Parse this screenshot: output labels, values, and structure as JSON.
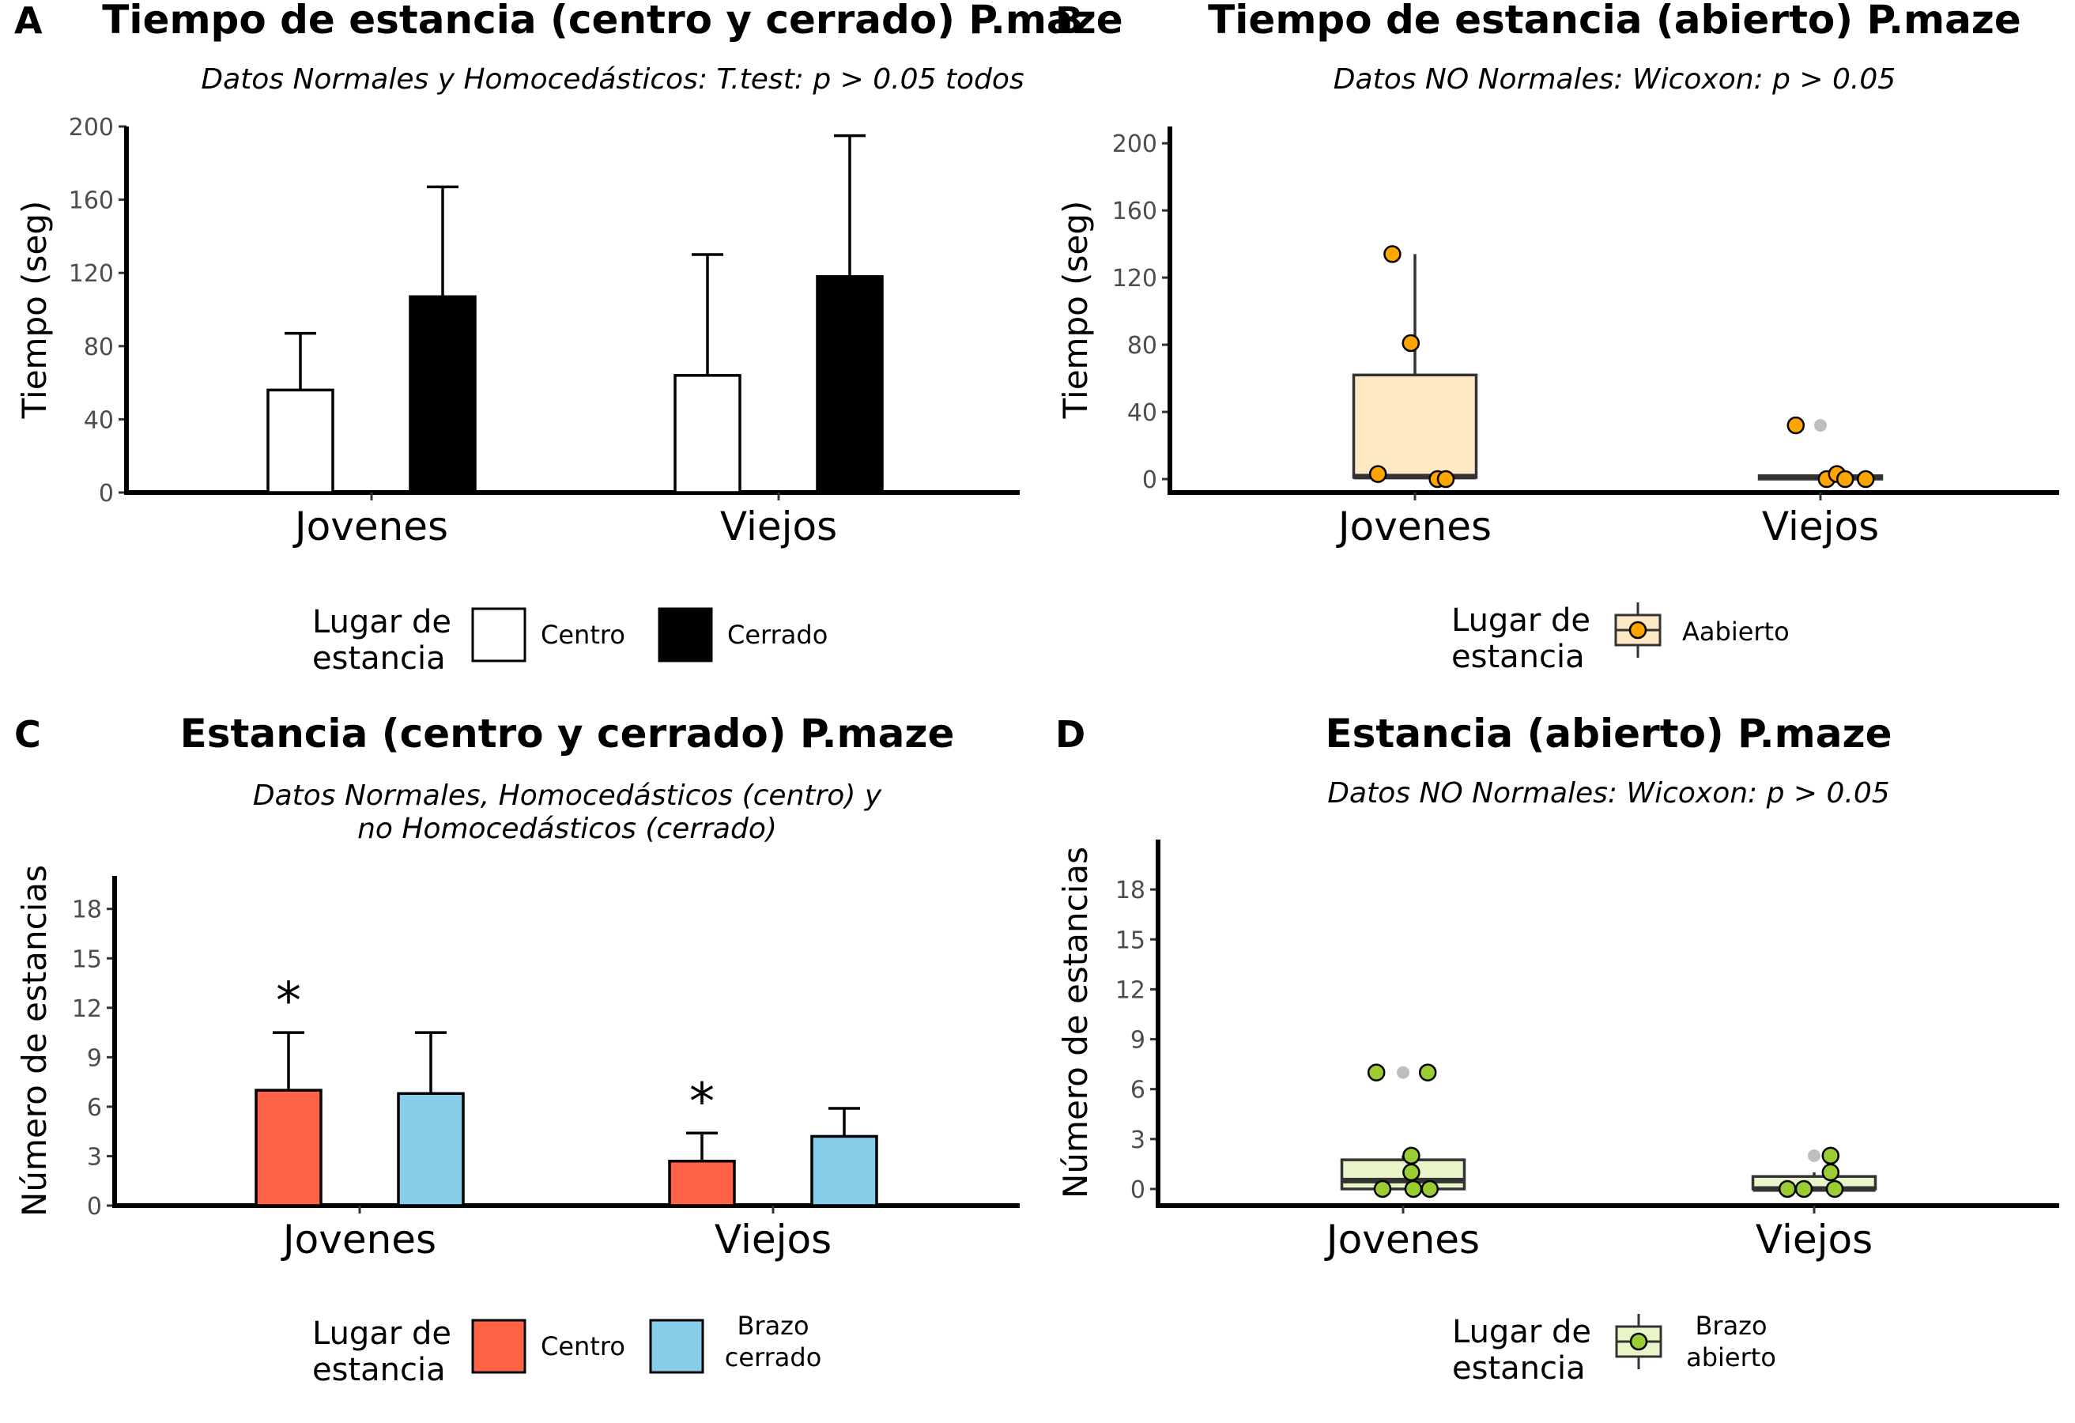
{
  "chart_data": [
    {
      "panel": "A",
      "type": "bar",
      "title": "Tiempo de estancia (centro y cerrado) P.maze",
      "subtitle": "Datos Normales y Homocedásticos: T.test: p > 0.05 todos",
      "ylabel": "Tiempo (seg)",
      "xlabel": "",
      "ylim": [
        0,
        200
      ],
      "yticks": [
        0,
        40,
        80,
        120,
        160,
        200
      ],
      "categories": [
        "Jovenes",
        "Viejos"
      ],
      "series": [
        {
          "name": "Centro",
          "values": [
            56,
            64
          ],
          "errors": [
            87,
            130
          ],
          "color": "#FFFFFF"
        },
        {
          "name": "Cerrado",
          "values": [
            107,
            118
          ],
          "errors": [
            167,
            195
          ],
          "color": "#000000"
        }
      ],
      "legend": {
        "title": "Lugar de estancia",
        "title_lines": [
          "Lugar de",
          "estancia"
        ],
        "position": "bottom"
      }
    },
    {
      "panel": "B",
      "type": "boxplot",
      "title": "Tiempo de estancia (abierto) P.maze",
      "subtitle": "Datos NO Normales: Wicoxon: p > 0.05",
      "ylabel": "Tiempo (seg)",
      "xlabel": "",
      "ylim": [
        -8,
        210
      ],
      "yticks": [
        0,
        40,
        80,
        120,
        160,
        200
      ],
      "categories": [
        "Jovenes",
        "Viejos"
      ],
      "boxes": [
        {
          "q1": 1,
          "median": 1.5,
          "q3": 62,
          "whisker_low": 0,
          "whisker_high": 134,
          "outliers": []
        },
        {
          "q1": 0,
          "median": 1,
          "q3": 2,
          "whisker_low": 0,
          "whisker_high": 2,
          "outliers": [
            32
          ]
        }
      ],
      "points": [
        [
          {
            "x": -0.11,
            "y": 134
          },
          {
            "x": -0.02,
            "y": 81
          },
          {
            "x": -0.18,
            "y": 3
          },
          {
            "x": 0.11,
            "y": 0
          },
          {
            "x": 0.15,
            "y": 0
          }
        ],
        [
          {
            "x": -0.12,
            "y": 32
          },
          {
            "x": 0.03,
            "y": 0
          },
          {
            "x": 0.08,
            "y": 3
          },
          {
            "x": 0.12,
            "y": 0
          },
          {
            "x": 0.22,
            "y": 0
          }
        ]
      ],
      "series": [
        {
          "name": "Aabierto",
          "fill": "#FFE9C4",
          "point": "#FFA500"
        }
      ],
      "legend": {
        "title": "Lugar de estancia",
        "title_lines": [
          "Lugar de",
          "estancia"
        ],
        "position": "bottom"
      }
    },
    {
      "panel": "C",
      "type": "bar",
      "title": "Estancia (centro y cerrado) P.maze",
      "subtitle_lines": [
        "Datos Normales, Homocedásticos (centro) y",
        "no Homocedásticos (cerrado)"
      ],
      "ylabel": "Número de estancias",
      "xlabel": "",
      "ylim": [
        0,
        20
      ],
      "yticks": [
        0,
        3,
        6,
        9,
        12,
        15,
        18
      ],
      "categories": [
        "Jovenes",
        "Viejos"
      ],
      "series": [
        {
          "name": "Centro",
          "values": [
            7,
            2.7
          ],
          "errors": [
            10.5,
            4.4
          ],
          "color": "#FF6347",
          "significance": [
            "*",
            "*"
          ]
        },
        {
          "name": "Brazo cerrado",
          "name_lines": [
            "Brazo",
            "cerrado"
          ],
          "values": [
            6.8,
            4.2
          ],
          "errors": [
            10.5,
            5.9
          ],
          "color": "#87CEEB"
        }
      ],
      "legend": {
        "title": "Lugar de estancia",
        "title_lines": [
          "Lugar de",
          "estancia"
        ],
        "position": "bottom"
      }
    },
    {
      "panel": "D",
      "type": "boxplot",
      "title": "Estancia (abierto) P.maze",
      "subtitle": "Datos NO Normales: Wicoxon: p > 0.05",
      "ylabel": "Número de estancias",
      "xlabel": "",
      "ylim": [
        -1,
        21
      ],
      "yticks": [
        0,
        3,
        6,
        9,
        12,
        15,
        18
      ],
      "categories": [
        "Jovenes",
        "Viejos"
      ],
      "boxes": [
        {
          "q1": 0,
          "median": 0.5,
          "q3": 1.75,
          "whisker_low": 0,
          "whisker_high": 2,
          "outliers": [
            7
          ]
        },
        {
          "q1": 0,
          "median": 0,
          "q3": 0.75,
          "whisker_low": 0,
          "whisker_high": 1,
          "outliers": [
            2
          ]
        }
      ],
      "points": [
        [
          {
            "x": -0.13,
            "y": 7
          },
          {
            "x": -0.1,
            "y": 0
          },
          {
            "x": 0.04,
            "y": 2
          },
          {
            "x": 0.12,
            "y": 7
          },
          {
            "x": 0.05,
            "y": 0
          },
          {
            "x": 0.13,
            "y": 0
          },
          {
            "x": 0.04,
            "y": 1
          }
        ],
        [
          {
            "x": -0.05,
            "y": 0
          },
          {
            "x": 0.08,
            "y": 2
          },
          {
            "x": 0.08,
            "y": 1
          },
          {
            "x": -0.13,
            "y": 0
          },
          {
            "x": 0.1,
            "y": 0
          }
        ]
      ],
      "series": [
        {
          "name": "Brazo abierto",
          "name_lines": [
            "Brazo",
            "abierto"
          ],
          "fill": "#E8F5C8",
          "point": "#9ACD32"
        }
      ],
      "legend": {
        "title": "Lugar de estancia",
        "title_lines": [
          "Lugar de",
          "estancia"
        ],
        "position": "bottom"
      }
    }
  ],
  "panel_tags": [
    "A",
    "B",
    "C",
    "D"
  ],
  "colors": {
    "axis": "#000000",
    "tick_text": "#4D4D4D",
    "whisker": "#333333",
    "outlier": "#BEBEBE"
  }
}
